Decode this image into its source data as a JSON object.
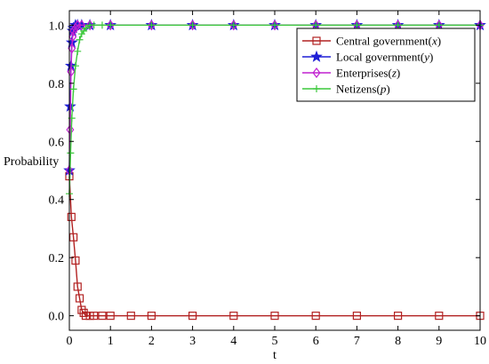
{
  "chart_data": {
    "type": "line",
    "xlabel": "t",
    "ylabel": "Probability",
    "xlim": [
      0,
      10
    ],
    "ylim": [
      -0.05,
      1.05
    ],
    "xticks": [
      0,
      1,
      2,
      3,
      4,
      5,
      6,
      7,
      8,
      9,
      10
    ],
    "yticks": [
      0.0,
      0.2,
      0.4,
      0.6,
      0.8,
      1.0
    ],
    "ytick_labels": [
      "0.0",
      "0.2",
      "0.4",
      "0.6",
      "0.8",
      "1.0"
    ],
    "grid": false,
    "legend_position": "top-right",
    "series": [
      {
        "name": "Central government(x)",
        "name_text": "Central government(",
        "name_var": "x",
        "color": "#b22222",
        "marker": "square",
        "x": [
          0,
          0.05,
          0.1,
          0.15,
          0.2,
          0.25,
          0.3,
          0.35,
          0.4,
          0.5,
          0.6,
          0.8,
          1,
          1.5,
          2,
          3,
          4,
          5,
          6,
          7,
          8,
          9,
          10
        ],
        "y": [
          0.48,
          0.34,
          0.27,
          0.19,
          0.1,
          0.06,
          0.02,
          0.01,
          0.0,
          0.0,
          0.0,
          0.0,
          0.0,
          0.0,
          0.0,
          0.0,
          0.0,
          0.0,
          0.0,
          0.0,
          0.0,
          0.0,
          0.0
        ]
      },
      {
        "name": "Local government(y)",
        "name_text": "Local government(",
        "name_var": "y",
        "color": "#1f1fd6",
        "marker": "star",
        "x": [
          0,
          0.02,
          0.04,
          0.06,
          0.08,
          0.1,
          0.15,
          0.2,
          0.3,
          0.5,
          1,
          2,
          3,
          4,
          5,
          6,
          7,
          8,
          9,
          10
        ],
        "y": [
          0.5,
          0.72,
          0.86,
          0.94,
          0.98,
          0.99,
          1.0,
          1.0,
          1.0,
          1.0,
          1.0,
          1.0,
          1.0,
          1.0,
          1.0,
          1.0,
          1.0,
          1.0,
          1.0,
          1.0
        ]
      },
      {
        "name": "Enterprises(z)",
        "name_text": "Enterprises(",
        "name_var": "z",
        "color": "#c020d0",
        "marker": "diamond",
        "x": [
          0,
          0.02,
          0.04,
          0.06,
          0.08,
          0.1,
          0.15,
          0.2,
          0.3,
          0.5,
          1,
          2,
          3,
          4,
          5,
          6,
          7,
          8,
          9,
          10
        ],
        "y": [
          0.5,
          0.64,
          0.84,
          0.92,
          0.96,
          0.98,
          0.99,
          1.0,
          1.0,
          1.0,
          1.0,
          1.0,
          1.0,
          1.0,
          1.0,
          1.0,
          1.0,
          1.0,
          1.0,
          1.0
        ]
      },
      {
        "name": "Netizens(p)",
        "name_text": "Netizens(",
        "name_var": "p",
        "color": "#3cc83c",
        "marker": "plus",
        "x": [
          0,
          0.03,
          0.06,
          0.1,
          0.15,
          0.2,
          0.25,
          0.3,
          0.35,
          0.4,
          0.5,
          0.6,
          0.8,
          1,
          2,
          3,
          4,
          5,
          6,
          7,
          8,
          9,
          10
        ],
        "y": [
          0.42,
          0.56,
          0.68,
          0.78,
          0.86,
          0.91,
          0.95,
          0.97,
          0.98,
          0.99,
          1.0,
          1.0,
          1.0,
          1.0,
          1.0,
          1.0,
          1.0,
          1.0,
          1.0,
          1.0,
          1.0,
          1.0,
          1.0
        ]
      }
    ]
  }
}
